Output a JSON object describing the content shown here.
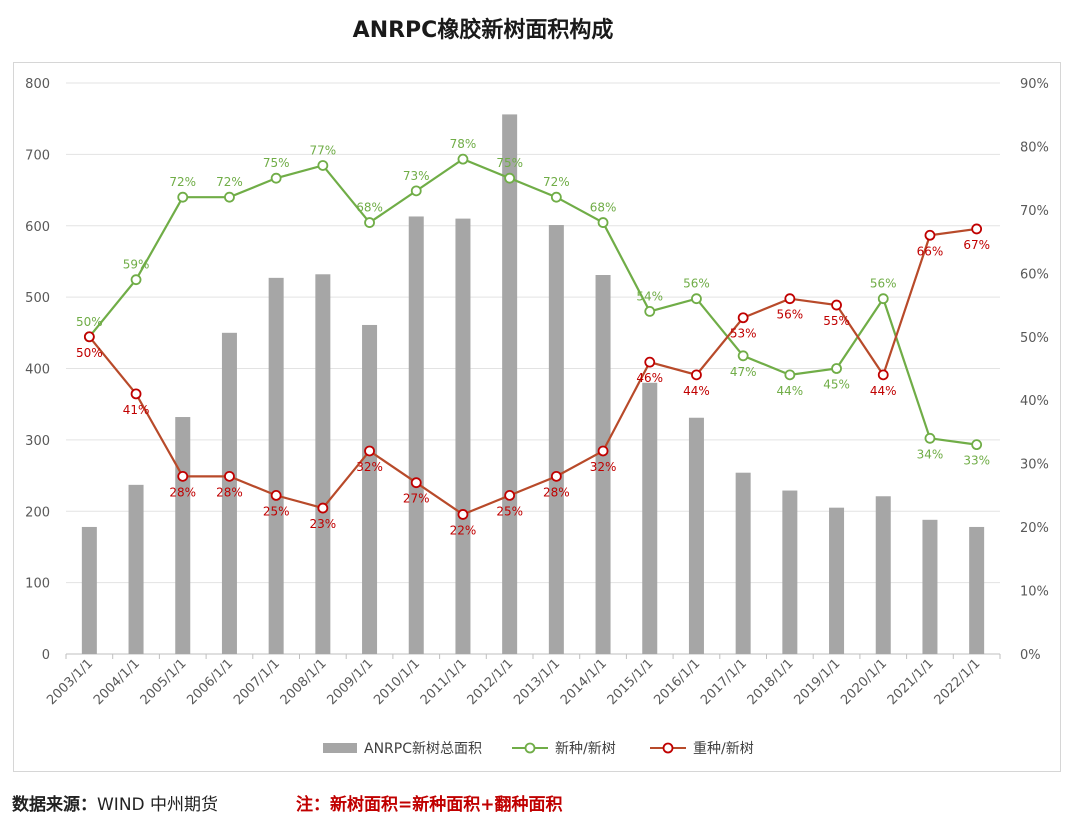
{
  "title": "ANRPC橡胶新树面积构成",
  "footer": {
    "source_label": "数据来源：",
    "source_value": "WIND  中州期货",
    "note": "注：新树面积=新种面积+翻种面积"
  },
  "colors": {
    "bar": "#a6a6a6",
    "new_planting": "#70ad47",
    "replanting": "#b84a2a",
    "replanting_point_border": "#c00000",
    "grid": "#e3e3e3",
    "axis_text": "#595959"
  },
  "chart_data": {
    "type": "bar",
    "categories": [
      "2003/1/1",
      "2004/1/1",
      "2005/1/1",
      "2006/1/1",
      "2007/1/1",
      "2008/1/1",
      "2009/1/1",
      "2010/1/1",
      "2011/1/1",
      "2012/1/1",
      "2013/1/1",
      "2014/1/1",
      "2015/1/1",
      "2016/1/1",
      "2017/1/1",
      "2018/1/1",
      "2019/1/1",
      "2020/1/1",
      "2021/1/1",
      "2022/1/1"
    ],
    "series": [
      {
        "name": "ANRPC新树总面积",
        "type": "bar",
        "axis": "left",
        "values": [
          178,
          237,
          332,
          450,
          527,
          532,
          461,
          613,
          610,
          756,
          601,
          531,
          380,
          331,
          254,
          229,
          205,
          221,
          188,
          178
        ]
      },
      {
        "name": "新种/新树",
        "type": "line",
        "axis": "right",
        "values": [
          50,
          59,
          72,
          72,
          75,
          77,
          68,
          73,
          78,
          75,
          72,
          68,
          54,
          56,
          47,
          44,
          45,
          56,
          34,
          33
        ],
        "labels": [
          "50%",
          "59%",
          "72%",
          "72%",
          "75%",
          "77%",
          "68%",
          "73%",
          "78%",
          "75%",
          "72%",
          "68%",
          "54%",
          "56%",
          "47%",
          "44%",
          "45%",
          "56%",
          "34%",
          "33%"
        ]
      },
      {
        "name": "重种/新树",
        "type": "line",
        "axis": "right",
        "values": [
          50,
          41,
          28,
          28,
          25,
          23,
          32,
          27,
          22,
          25,
          28,
          32,
          46,
          44,
          53,
          56,
          55,
          44,
          66,
          67
        ],
        "labels": [
          "50%",
          "41%",
          "28%",
          "28%",
          "25%",
          "23%",
          "32%",
          "27%",
          "22%",
          "25%",
          "28%",
          "32%",
          "46%",
          "44%",
          "53%",
          "56%",
          "55%",
          "44%",
          "66%",
          "67%"
        ]
      }
    ],
    "left_axis": {
      "min": 0,
      "max": 800,
      "ticks": [
        "0",
        "100",
        "200",
        "300",
        "400",
        "500",
        "600",
        "700",
        "800"
      ]
    },
    "right_axis": {
      "min": 0,
      "max": 90,
      "ticks": [
        "0%",
        "10%",
        "20%",
        "30%",
        "40%",
        "50%",
        "60%",
        "70%",
        "80%",
        "90%"
      ]
    },
    "grid": true,
    "legend_position": "bottom"
  }
}
